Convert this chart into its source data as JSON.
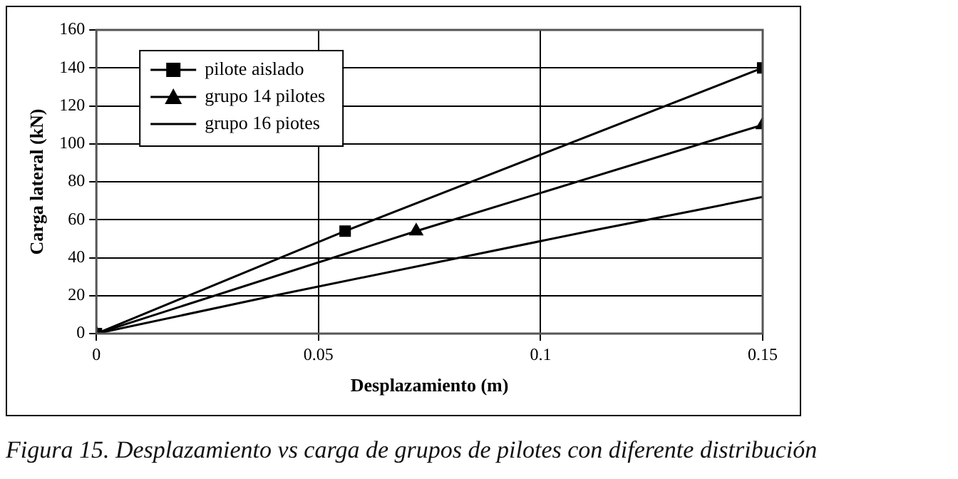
{
  "chart_data": {
    "type": "line",
    "xlabel": "Desplazamiento (m)",
    "ylabel": "Carga lateral (kN)",
    "annotations": [
      "Figura 15. Desplazamiento vs carga de grupos de pilotes con diferente distribución"
    ],
    "series": [
      {
        "name": "pilote aislado",
        "color": "#000000",
        "marker": "square",
        "x": [
          0,
          0.056,
          0.15
        ],
        "values": [
          0,
          54,
          140
        ]
      },
      {
        "name": "grupo 14 pilotes",
        "color": "#000000",
        "marker": "triangle",
        "x": [
          0,
          0.072,
          0.15
        ],
        "values": [
          0,
          54,
          110
        ]
      },
      {
        "name": "grupo 16 piotes",
        "color": "#000000",
        "marker": "none",
        "x": [
          0,
          0.04,
          0.111,
          0.135,
          0.15
        ],
        "values": [
          0,
          20,
          54,
          65,
          72
        ]
      }
    ],
    "xlim": [
      0,
      0.15
    ],
    "xticks": [
      0,
      0.05,
      0.1,
      0.15
    ],
    "ylim": [
      0,
      160
    ],
    "yticks": [
      0,
      20,
      40,
      60,
      80,
      100,
      120,
      140,
      160
    ],
    "grid": true,
    "legend": "top left"
  }
}
